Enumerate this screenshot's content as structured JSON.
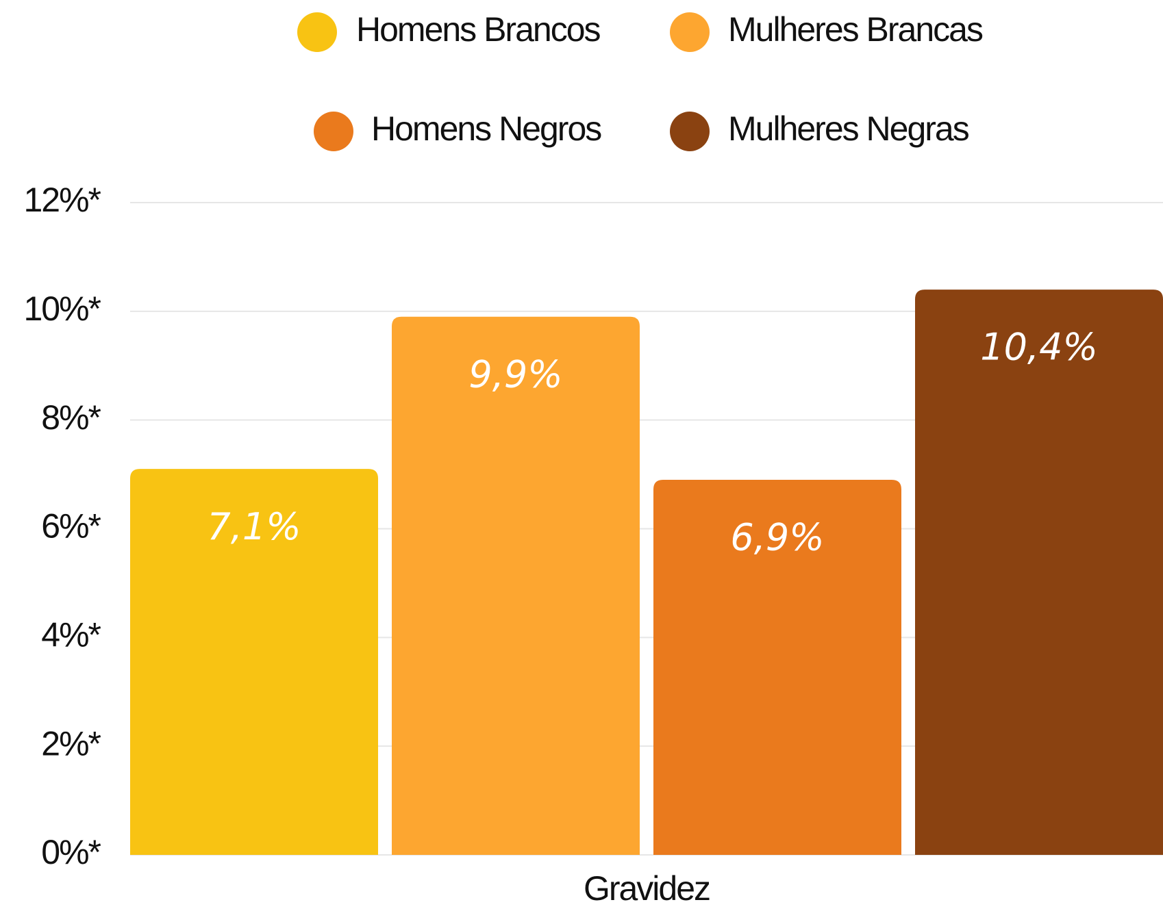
{
  "chart_data": {
    "type": "bar",
    "categories": [
      "Gravidez"
    ],
    "series": [
      {
        "name": "Homens Brancos",
        "color": "#F8C313",
        "values": [
          7.1
        ],
        "value_labels": [
          "7,1%"
        ]
      },
      {
        "name": "Mulheres Brancas",
        "color": "#FDA630",
        "values": [
          9.9
        ],
        "value_labels": [
          "9,9%"
        ]
      },
      {
        "name": "Homens Negros",
        "color": "#EA7A1D",
        "values": [
          6.9
        ],
        "value_labels": [
          "6,9%"
        ]
      },
      {
        "name": "Mulheres Negras",
        "color": "#8A4211",
        "values": [
          10.4
        ],
        "value_labels": [
          "10,4%"
        ]
      }
    ],
    "ylim": [
      0,
      12
    ],
    "yticks": [
      {
        "value": 0,
        "label": "0%*"
      },
      {
        "value": 2,
        "label": "2%*"
      },
      {
        "value": 4,
        "label": "4%*"
      },
      {
        "value": 6,
        "label": "6%*"
      },
      {
        "value": 8,
        "label": "8%*"
      },
      {
        "value": 10,
        "label": "10%*"
      },
      {
        "value": 12,
        "label": "12%*"
      }
    ],
    "grid": true
  }
}
